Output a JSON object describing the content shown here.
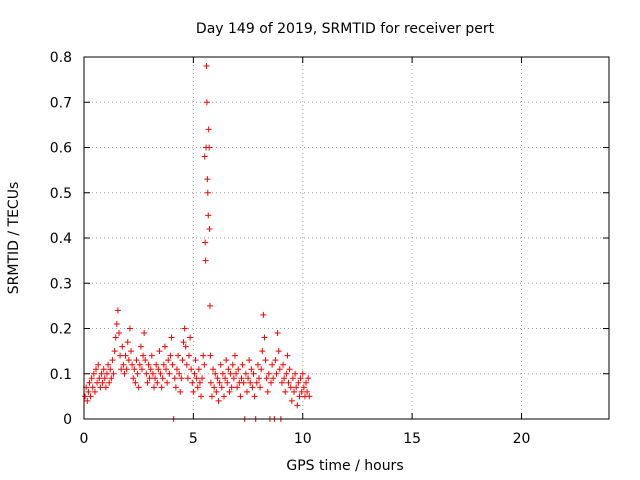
{
  "chart_data": {
    "type": "scatter",
    "title": "Day 149 of 2019, SRMTID for receiver pert",
    "xlabel": "GPS time / hours",
    "ylabel": "SRMTID / TECUs",
    "xlim": [
      0,
      24
    ],
    "ylim": [
      0,
      0.8
    ],
    "xticks": [
      0,
      5,
      10,
      15,
      20
    ],
    "xtick_labels": [
      "0",
      "5",
      "10",
      "15",
      "20"
    ],
    "yticks": [
      0,
      0.1,
      0.2,
      0.3,
      0.4,
      0.5,
      0.6,
      0.7,
      0.8
    ],
    "ytick_labels": [
      "0",
      "0.1",
      "0.2",
      "0.3",
      "0.4",
      "0.5",
      "0.6",
      "0.7",
      "0.8"
    ],
    "grid": true,
    "marker": "+",
    "color": "#ff0000",
    "series": [
      {
        "name": "pert",
        "points": [
          [
            0.05,
            0.05
          ],
          [
            0.1,
            0.07
          ],
          [
            0.15,
            0.04
          ],
          [
            0.2,
            0.06
          ],
          [
            0.25,
            0.08
          ],
          [
            0.3,
            0.05
          ],
          [
            0.35,
            0.09
          ],
          [
            0.4,
            0.07
          ],
          [
            0.45,
            0.1
          ],
          [
            0.5,
            0.06
          ],
          [
            0.55,
            0.11
          ],
          [
            0.6,
            0.08
          ],
          [
            0.65,
            0.12
          ],
          [
            0.7,
            0.09
          ],
          [
            0.75,
            0.07
          ],
          [
            0.8,
            0.1
          ],
          [
            0.85,
            0.08
          ],
          [
            0.9,
            0.11
          ],
          [
            0.95,
            0.09
          ],
          [
            1.0,
            0.07
          ],
          [
            1.05,
            0.1
          ],
          [
            1.1,
            0.12
          ],
          [
            1.15,
            0.08
          ],
          [
            1.2,
            0.11
          ],
          [
            1.25,
            0.09
          ],
          [
            1.3,
            0.13
          ],
          [
            1.35,
            0.1
          ],
          [
            1.4,
            0.15
          ],
          [
            1.45,
            0.18
          ],
          [
            1.5,
            0.21
          ],
          [
            1.55,
            0.24
          ],
          [
            1.6,
            0.19
          ],
          [
            1.65,
            0.14
          ],
          [
            1.7,
            0.11
          ],
          [
            1.75,
            0.16
          ],
          [
            1.8,
            0.12
          ],
          [
            1.85,
            0.1
          ],
          [
            1.9,
            0.14
          ],
          [
            1.95,
            0.11
          ],
          [
            2.0,
            0.17
          ],
          [
            2.05,
            0.13
          ],
          [
            2.1,
            0.2
          ],
          [
            2.15,
            0.15
          ],
          [
            2.2,
            0.12
          ],
          [
            2.25,
            0.09
          ],
          [
            2.3,
            0.11
          ],
          [
            2.35,
            0.08
          ],
          [
            2.4,
            0.13
          ],
          [
            2.45,
            0.1
          ],
          [
            2.5,
            0.07
          ],
          [
            2.55,
            0.12
          ],
          [
            2.6,
            0.16
          ],
          [
            2.65,
            0.11
          ],
          [
            2.7,
            0.14
          ],
          [
            2.75,
            0.19
          ],
          [
            2.8,
            0.13
          ],
          [
            2.85,
            0.1
          ],
          [
            2.9,
            0.08
          ],
          [
            2.95,
            0.12
          ],
          [
            3.0,
            0.09
          ],
          [
            3.05,
            0.11
          ],
          [
            3.1,
            0.14
          ],
          [
            3.15,
            0.1
          ],
          [
            3.2,
            0.07
          ],
          [
            3.25,
            0.09
          ],
          [
            3.3,
            0.12
          ],
          [
            3.35,
            0.08
          ],
          [
            3.4,
            0.11
          ],
          [
            3.45,
            0.15
          ],
          [
            3.5,
            0.1
          ],
          [
            3.55,
            0.07
          ],
          [
            3.6,
            0.09
          ],
          [
            3.65,
            0.12
          ],
          [
            3.7,
            0.16
          ],
          [
            3.75,
            0.11
          ],
          [
            3.8,
            0.08
          ],
          [
            3.85,
            0.13
          ],
          [
            3.9,
            0.1
          ],
          [
            3.95,
            0.14
          ],
          [
            4.0,
            0.18
          ],
          [
            4.05,
            0.12
          ],
          [
            4.1,
            0.0
          ],
          [
            4.15,
            0.09
          ],
          [
            4.2,
            0.07
          ],
          [
            4.25,
            0.11
          ],
          [
            4.3,
            0.14
          ],
          [
            4.35,
            0.1
          ],
          [
            4.4,
            0.06
          ],
          [
            4.45,
            0.09
          ],
          [
            4.5,
            0.13
          ],
          [
            4.55,
            0.17
          ],
          [
            4.6,
            0.2
          ],
          [
            4.65,
            0.16
          ],
          [
            4.7,
            0.12
          ],
          [
            4.75,
            0.09
          ],
          [
            4.8,
            0.14
          ],
          [
            4.85,
            0.18
          ],
          [
            4.9,
            0.11
          ],
          [
            4.95,
            0.08
          ],
          [
            5.0,
            0.06
          ],
          [
            5.05,
            0.1
          ],
          [
            5.1,
            0.13
          ],
          [
            5.15,
            0.09
          ],
          [
            5.2,
            0.07
          ],
          [
            5.25,
            0.11
          ],
          [
            5.3,
            0.08
          ],
          [
            5.35,
            0.05
          ],
          [
            5.4,
            0.09
          ],
          [
            5.45,
            0.14
          ],
          [
            5.5,
            0.12
          ],
          [
            5.52,
            0.58
          ],
          [
            5.54,
            0.39
          ],
          [
            5.56,
            0.35
          ],
          [
            5.58,
            0.6
          ],
          [
            5.6,
            0.78
          ],
          [
            5.62,
            0.7
          ],
          [
            5.64,
            0.53
          ],
          [
            5.66,
            0.5
          ],
          [
            5.68,
            0.45
          ],
          [
            5.7,
            0.64
          ],
          [
            5.72,
            0.6
          ],
          [
            5.74,
            0.42
          ],
          [
            5.76,
            0.25
          ],
          [
            5.78,
            0.14
          ],
          [
            5.8,
            0.08
          ],
          [
            5.85,
            0.05
          ],
          [
            5.9,
            0.11
          ],
          [
            5.95,
            0.07
          ],
          [
            6.0,
            0.1
          ],
          [
            6.05,
            0.06
          ],
          [
            6.1,
            0.09
          ],
          [
            6.15,
            0.04
          ],
          [
            6.2,
            0.08
          ],
          [
            6.25,
            0.12
          ],
          [
            6.3,
            0.07
          ],
          [
            6.35,
            0.1
          ],
          [
            6.4,
            0.05
          ],
          [
            6.45,
            0.09
          ],
          [
            6.5,
            0.13
          ],
          [
            6.55,
            0.08
          ],
          [
            6.6,
            0.11
          ],
          [
            6.65,
            0.06
          ],
          [
            6.7,
            0.1
          ],
          [
            6.75,
            0.07
          ],
          [
            6.8,
            0.12
          ],
          [
            6.85,
            0.09
          ],
          [
            6.9,
            0.14
          ],
          [
            6.95,
            0.1
          ],
          [
            7.0,
            0.07
          ],
          [
            7.05,
            0.11
          ],
          [
            7.1,
            0.08
          ],
          [
            7.15,
            0.05
          ],
          [
            7.2,
            0.09
          ],
          [
            7.25,
            0.12
          ],
          [
            7.3,
            0.08
          ],
          [
            7.35,
            0.0
          ],
          [
            7.4,
            0.1
          ],
          [
            7.45,
            0.06
          ],
          [
            7.5,
            0.09
          ],
          [
            7.55,
            0.13
          ],
          [
            7.6,
            0.08
          ],
          [
            7.65,
            0.11
          ],
          [
            7.7,
            0.07
          ],
          [
            7.75,
            0.1
          ],
          [
            7.8,
            0.05
          ],
          [
            7.85,
            0.0
          ],
          [
            7.9,
            0.08
          ],
          [
            7.95,
            0.12
          ],
          [
            8.0,
            0.09
          ],
          [
            8.05,
            0.07
          ],
          [
            8.1,
            0.11
          ],
          [
            8.15,
            0.15
          ],
          [
            8.2,
            0.23
          ],
          [
            8.25,
            0.18
          ],
          [
            8.3,
            0.13
          ],
          [
            8.35,
            0.09
          ],
          [
            8.4,
            0.06
          ],
          [
            8.45,
            0.1
          ],
          [
            8.5,
            0.0
          ],
          [
            8.55,
            0.08
          ],
          [
            8.6,
            0.12
          ],
          [
            8.65,
            0.09
          ],
          [
            8.7,
            0.0
          ],
          [
            8.75,
            0.13
          ],
          [
            8.8,
            0.1
          ],
          [
            8.85,
            0.19
          ],
          [
            8.9,
            0.15
          ],
          [
            8.95,
            0.11
          ],
          [
            9.0,
            0.0
          ],
          [
            9.05,
            0.08
          ],
          [
            9.1,
            0.12
          ],
          [
            9.15,
            0.09
          ],
          [
            9.2,
            0.06
          ],
          [
            9.25,
            0.1
          ],
          [
            9.3,
            0.14
          ],
          [
            9.35,
            0.08
          ],
          [
            9.4,
            0.11
          ],
          [
            9.45,
            0.07
          ],
          [
            9.5,
            0.04
          ],
          [
            9.55,
            0.09
          ],
          [
            9.6,
            0.06
          ],
          [
            9.65,
            0.1
          ],
          [
            9.7,
            0.07
          ],
          [
            9.75,
            0.03
          ],
          [
            9.8,
            0.08
          ],
          [
            9.85,
            0.05
          ],
          [
            9.9,
            0.09
          ],
          [
            9.95,
            0.06
          ],
          [
            10.0,
            0.1
          ],
          [
            10.05,
            0.07
          ],
          [
            10.1,
            0.05
          ],
          [
            10.15,
            0.08
          ],
          [
            10.2,
            0.06
          ],
          [
            10.25,
            0.09
          ],
          [
            10.3,
            0.05
          ]
        ]
      }
    ]
  }
}
